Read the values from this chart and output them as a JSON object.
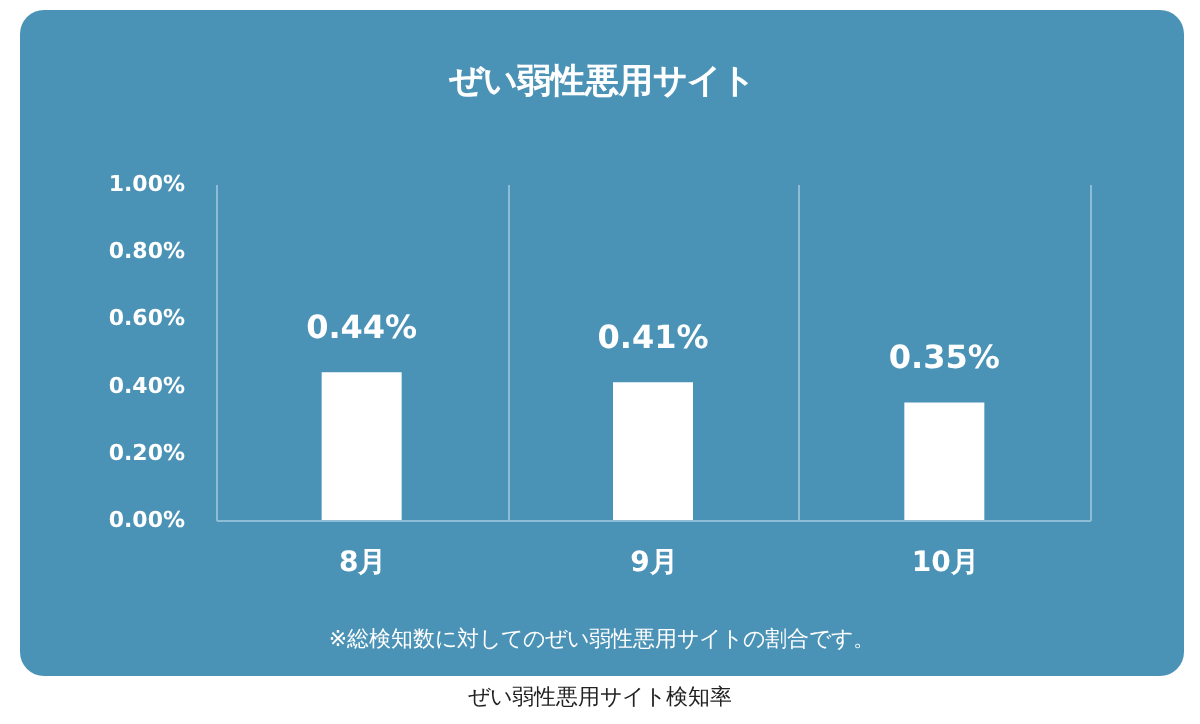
{
  "chart_data": {
    "type": "bar",
    "title": "ぜい弱性悪用サイト",
    "categories": [
      "8月",
      "9月",
      "10月"
    ],
    "values": [
      0.44,
      0.41,
      0.35
    ],
    "value_labels": [
      "0.44%",
      "0.41%",
      "0.35%"
    ],
    "color": "#ffffff",
    "ylim": [
      0,
      1
    ],
    "yticks": [
      {
        "value": 0,
        "label": "0.00%"
      },
      {
        "value": 0.2,
        "label": "0.20%"
      },
      {
        "value": 0.4,
        "label": "0.40%"
      },
      {
        "value": 0.6,
        "label": "0.60%"
      },
      {
        "value": 0.8,
        "label": "0.80%"
      },
      {
        "value": 1,
        "label": "1.00%"
      }
    ],
    "grid": "x",
    "annotations": [
      "※総検知数に対してのぜい弱性悪用サイトの割合です。",
      "ぜい弱性悪用サイト検知率"
    ]
  }
}
